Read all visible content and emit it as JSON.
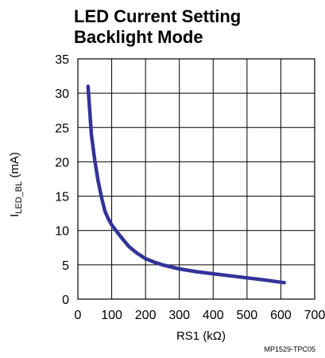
{
  "chart_data": {
    "type": "line",
    "title_lines": [
      "LED Current Setting",
      "Backlight Mode"
    ],
    "ylabel": {
      "main": "I",
      "subscript": "LED_BL",
      "unit": " (mA)"
    },
    "xlabel": "RS1 (kΩ)",
    "xlim": [
      0,
      700
    ],
    "ylim": [
      0,
      35
    ],
    "x_ticks": [
      0,
      100,
      200,
      300,
      400,
      500,
      600,
      700
    ],
    "y_ticks": [
      0,
      5,
      10,
      15,
      20,
      25,
      30,
      35
    ],
    "grid": true,
    "line_color": "#333399",
    "series": [
      {
        "x": [
          30,
          35,
          40,
          50,
          60,
          70,
          80,
          90,
          100,
          125,
          150,
          175,
          200,
          225,
          250,
          300,
          350,
          400,
          450,
          500,
          550,
          610
        ],
        "y": [
          31.0,
          27.5,
          24.0,
          20.2,
          17.2,
          14.8,
          12.8,
          11.7,
          10.8,
          9.2,
          7.7,
          6.7,
          5.9,
          5.4,
          5.0,
          4.4,
          4.0,
          3.7,
          3.4,
          3.1,
          2.8,
          2.4
        ]
      }
    ]
  },
  "footnote": "MP1529-TPC05"
}
